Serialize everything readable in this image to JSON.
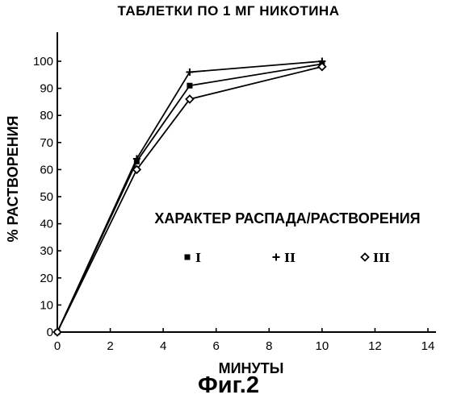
{
  "figure_label": "Фиг.2",
  "chart_data": {
    "type": "line",
    "title": "ТАБЛЕТКИ ПО 1 МГ НИКОТИНА",
    "xlabel": "МИНУТЫ",
    "ylabel": "% РАСТВОРЕНИЯ",
    "xlim": [
      0,
      14
    ],
    "ylim": [
      0,
      100
    ],
    "x_ticks": [
      "0",
      "2",
      "4",
      "6",
      "8",
      "10",
      "12",
      "14"
    ],
    "y_ticks": [
      "0",
      "10",
      "20",
      "30",
      "40",
      "50",
      "60",
      "70",
      "80",
      "90",
      "100"
    ],
    "grid": false,
    "legend": {
      "title": "ХАРАКТЕР РАСПАДА/РАСТВОРЕНИЯ",
      "placement": "center-right"
    },
    "series": [
      {
        "name": "I",
        "marker": "square",
        "x": [
          0,
          3,
          5,
          10
        ],
        "y": [
          0,
          63,
          91,
          99
        ]
      },
      {
        "name": "II",
        "marker": "plus",
        "x": [
          0,
          3,
          5,
          10
        ],
        "y": [
          0,
          64,
          96,
          100
        ]
      },
      {
        "name": "III",
        "marker": "diamond",
        "x": [
          0,
          3,
          5,
          10
        ],
        "y": [
          0,
          60,
          86,
          98
        ]
      }
    ]
  }
}
